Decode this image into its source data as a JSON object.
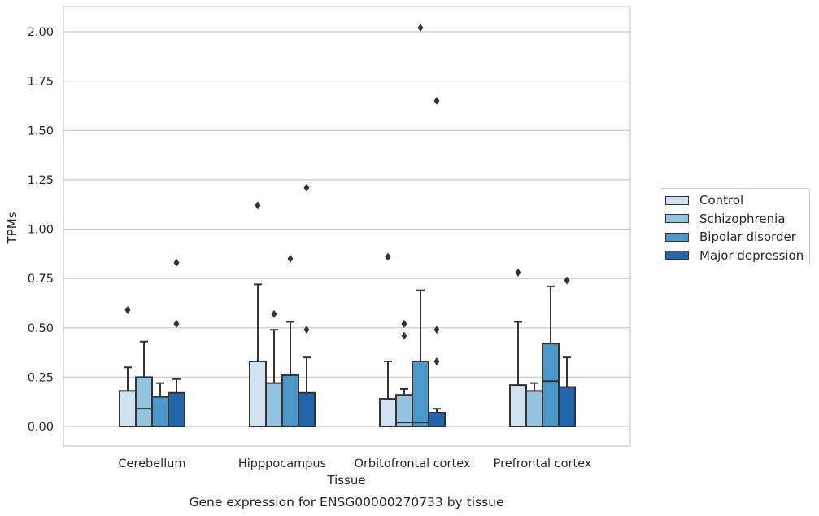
{
  "chart_data": {
    "type": "box",
    "title": "Gene expression for ENSG00000270733 by tissue",
    "xlabel": "Tissue",
    "ylabel": "TPMs",
    "ylim": [
      -0.1,
      2.12
    ],
    "yticks": [
      "0.00",
      "0.25",
      "0.50",
      "0.75",
      "1.00",
      "1.25",
      "1.50",
      "1.75",
      "2.00"
    ],
    "grid": true,
    "legend_position": "right",
    "categories": [
      "Cerebellum",
      "Hipppocampus",
      "Orbitofrontal cortex",
      "Prefrontal cortex"
    ],
    "series": [
      {
        "name": "Control",
        "color": "#d0e1f2",
        "boxes": [
          {
            "q1": 0.0,
            "median": 0.0,
            "q3": 0.18,
            "whisker_low": 0.0,
            "whisker_high": 0.3,
            "outliers": [
              0.59
            ]
          },
          {
            "q1": 0.0,
            "median": 0.0,
            "q3": 0.33,
            "whisker_low": 0.0,
            "whisker_high": 0.72,
            "outliers": [
              1.12
            ]
          },
          {
            "q1": 0.0,
            "median": 0.0,
            "q3": 0.14,
            "whisker_low": 0.0,
            "whisker_high": 0.33,
            "outliers": [
              0.86
            ]
          },
          {
            "q1": 0.0,
            "median": 0.0,
            "q3": 0.21,
            "whisker_low": 0.0,
            "whisker_high": 0.53,
            "outliers": [
              0.78
            ]
          }
        ]
      },
      {
        "name": "Schizophrenia",
        "color": "#94c4df",
        "boxes": [
          {
            "q1": 0.0,
            "median": 0.09,
            "q3": 0.25,
            "whisker_low": 0.0,
            "whisker_high": 0.43,
            "outliers": []
          },
          {
            "q1": 0.0,
            "median": 0.0,
            "q3": 0.22,
            "whisker_low": 0.0,
            "whisker_high": 0.49,
            "outliers": [
              0.57
            ]
          },
          {
            "q1": 0.0,
            "median": 0.02,
            "q3": 0.16,
            "whisker_low": 0.0,
            "whisker_high": 0.19,
            "outliers": [
              0.46,
              0.52
            ]
          },
          {
            "q1": 0.0,
            "median": 0.0,
            "q3": 0.18,
            "whisker_low": 0.0,
            "whisker_high": 0.22,
            "outliers": []
          }
        ]
      },
      {
        "name": "Bipolar disorder",
        "color": "#4a98c9",
        "boxes": [
          {
            "q1": 0.0,
            "median": 0.0,
            "q3": 0.15,
            "whisker_low": 0.0,
            "whisker_high": 0.22,
            "outliers": []
          },
          {
            "q1": 0.0,
            "median": 0.0,
            "q3": 0.26,
            "whisker_low": 0.0,
            "whisker_high": 0.53,
            "outliers": [
              0.85
            ]
          },
          {
            "q1": 0.0,
            "median": 0.02,
            "q3": 0.33,
            "whisker_low": 0.0,
            "whisker_high": 0.69,
            "outliers": [
              2.02
            ]
          },
          {
            "q1": 0.0,
            "median": 0.23,
            "q3": 0.42,
            "whisker_low": 0.0,
            "whisker_high": 0.71,
            "outliers": []
          }
        ]
      },
      {
        "name": "Major depression",
        "color": "#2166ac",
        "boxes": [
          {
            "q1": 0.0,
            "median": 0.0,
            "q3": 0.17,
            "whisker_low": 0.0,
            "whisker_high": 0.24,
            "outliers": [
              0.52,
              0.83
            ]
          },
          {
            "q1": 0.0,
            "median": 0.0,
            "q3": 0.17,
            "whisker_low": 0.0,
            "whisker_high": 0.35,
            "outliers": [
              0.49,
              1.21
            ]
          },
          {
            "q1": 0.0,
            "median": 0.0,
            "q3": 0.07,
            "whisker_low": 0.0,
            "whisker_high": 0.09,
            "outliers": [
              0.33,
              0.49,
              1.65
            ]
          },
          {
            "q1": 0.0,
            "median": 0.0,
            "q3": 0.2,
            "whisker_low": 0.0,
            "whisker_high": 0.35,
            "outliers": [
              0.74
            ]
          }
        ]
      }
    ]
  }
}
